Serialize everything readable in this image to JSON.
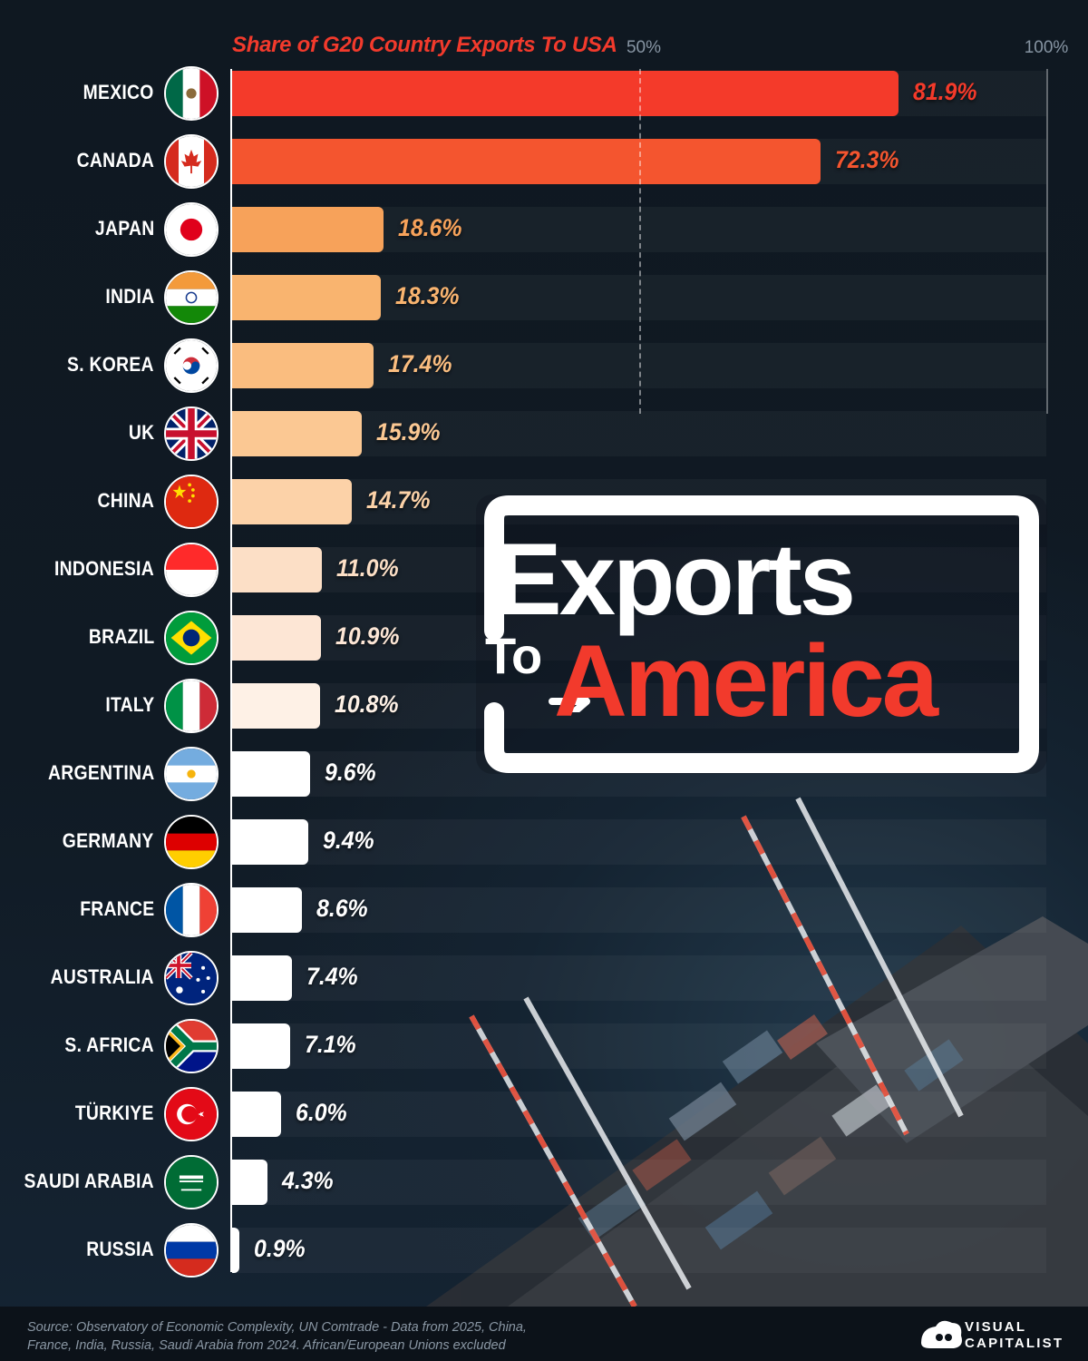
{
  "chart_data": {
    "type": "bar",
    "orientation": "horizontal",
    "title": "Share of G20 Country Exports To USA",
    "tick_labels": [
      "50%",
      "100%"
    ],
    "xlim": [
      0,
      100
    ],
    "categories": [
      "MEXICO",
      "CANADA",
      "JAPAN",
      "INDIA",
      "S. KOREA",
      "UK",
      "CHINA",
      "INDONESIA",
      "BRAZIL",
      "ITALY",
      "ARGENTINA",
      "GERMANY",
      "FRANCE",
      "AUSTRALIA",
      "S. AFRICA",
      "TÜRKIYE",
      "SAUDI ARABIA",
      "RUSSIA"
    ],
    "values": [
      81.9,
      72.3,
      18.6,
      18.3,
      17.4,
      15.9,
      14.7,
      11.0,
      10.9,
      10.8,
      9.6,
      9.4,
      8.6,
      7.4,
      7.1,
      6.0,
      4.3,
      0.9
    ],
    "value_labels": [
      "81.9%",
      "72.3%",
      "18.6%",
      "18.3%",
      "17.4%",
      "15.9%",
      "14.7%",
      "11.0%",
      "10.9%",
      "10.8%",
      "9.6%",
      "9.4%",
      "8.6%",
      "7.4%",
      "7.1%",
      "6.0%",
      "4.3%",
      "0.9%"
    ],
    "bar_colors": [
      "#f43a2a",
      "#f4552f",
      "#f7a25a",
      "#f9b46f",
      "#fabd7f",
      "#fbc893",
      "#fcd2a8",
      "#fcdfc6",
      "#fde6d5",
      "#fef1e6",
      "#ffffff",
      "#ffffff",
      "#ffffff",
      "#ffffff",
      "#ffffff",
      "#ffffff",
      "#ffffff",
      "#ffffff"
    ],
    "value_colors": [
      "#f43a2a",
      "#f4552f",
      "#f7a25a",
      "#f9b46f",
      "#fabd7f",
      "#fbc893",
      "#fcd2a8",
      "#fcdfc6",
      "#fde6d5",
      "#fef1e6",
      "#ffffff",
      "#ffffff",
      "#ffffff",
      "#ffffff",
      "#ffffff",
      "#ffffff",
      "#ffffff",
      "#ffffff"
    ],
    "flag_icons": [
      "mexico-flag-icon",
      "canada-flag-icon",
      "japan-flag-icon",
      "india-flag-icon",
      "south-korea-flag-icon",
      "uk-flag-icon",
      "china-flag-icon",
      "indonesia-flag-icon",
      "brazil-flag-icon",
      "italy-flag-icon",
      "argentina-flag-icon",
      "germany-flag-icon",
      "france-flag-icon",
      "australia-flag-icon",
      "south-africa-flag-icon",
      "turkiye-flag-icon",
      "saudi-arabia-flag-icon",
      "russia-flag-icon"
    ],
    "grid": true
  },
  "headline": {
    "line1": "Exports",
    "to": "To",
    "line2": "America"
  },
  "footer": {
    "source": "Source: Observatory of Economic Complexity, UN Comtrade - Data from 2025, China, France, India, Russia, Saudi Arabia from 2024. African/European Unions excluded",
    "brand_line1": "VISUAL",
    "brand_line2": "CAPITALIST"
  },
  "colors": {
    "accent": "#f23a2c",
    "background": "#0f1821",
    "text": "#ffffff"
  }
}
